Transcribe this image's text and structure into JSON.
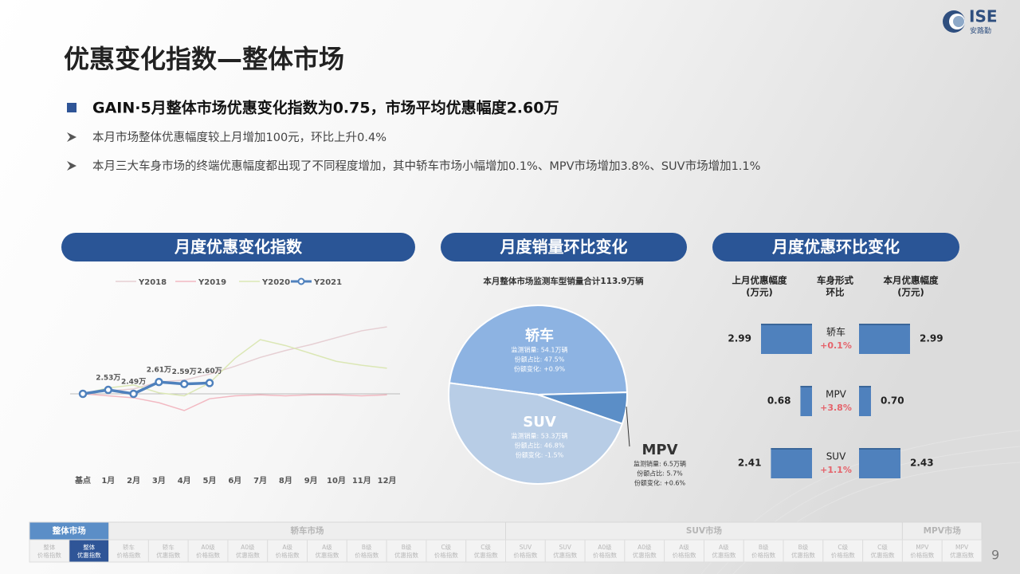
{
  "header": {
    "title": "优惠变化指数—整体市场",
    "headline": "GAIN·5月整体市场优惠变化指数为0.75，市场平均优惠幅度2.60万",
    "bullets": [
      "本月市场整体优惠幅度较上月增加100元，环比上升0.4%",
      "本月三大车身市场的终端优惠幅度都出现了不同程度增加，其中轿车市场小幅增加0.1%、MPV市场增加3.8%、SUV市场增加1.1%"
    ]
  },
  "logo": {
    "text": "ISE",
    "subtext": "安路勤"
  },
  "panels": [
    "月度优惠变化指数",
    "月度销量环比变化",
    "月度优惠环比变化"
  ],
  "chart_data": [
    {
      "type": "line",
      "categories": [
        "基点",
        "1月",
        "2月",
        "3月",
        "4月",
        "5月",
        "6月",
        "7月",
        "8月",
        "9月",
        "10月",
        "11月",
        "12月"
      ],
      "series": [
        {
          "name": "Y2018",
          "color": "#e6cfd3",
          "values": [
            2.49,
            2.52,
            2.54,
            2.61,
            2.63,
            2.69,
            2.77,
            2.86,
            2.93,
            2.99,
            3.06,
            3.13,
            3.17
          ]
        },
        {
          "name": "Y2019",
          "color": "#f2b9c2",
          "values": [
            2.49,
            2.47,
            2.45,
            2.4,
            2.32,
            2.44,
            2.47,
            2.48,
            2.47,
            2.48,
            2.48,
            2.47,
            2.48
          ]
        },
        {
          "name": "Y2020",
          "color": "#dbe7b5",
          "values": [
            2.49,
            2.55,
            2.58,
            2.5,
            2.47,
            2.6,
            2.85,
            3.04,
            2.98,
            2.9,
            2.82,
            2.78,
            2.75
          ]
        },
        {
          "name": "Y2021",
          "color": "#4f81bd",
          "values": [
            2.49,
            2.53,
            2.49,
            2.61,
            2.59,
            2.6,
            null,
            null,
            null,
            null,
            null,
            null,
            null
          ],
          "value_labels": [
            null,
            "2.53万",
            "2.49万",
            "2.61万",
            "2.59万",
            "2.60万",
            null,
            null,
            null,
            null,
            null,
            null,
            null
          ]
        }
      ]
    },
    {
      "type": "pie",
      "title": "本月整体市场监测车型销量合计113.9万辆",
      "categories": [
        "轿车",
        "SUV",
        "MPV"
      ],
      "values": [
        47.5,
        46.8,
        5.7
      ],
      "colors": [
        "#8db3e2",
        "#b8cde6",
        "#5b8ec7"
      ],
      "value_labels": [
        "份额占比: 47.5%",
        "份额占比: 46.8%",
        "份额占比: 5.7%"
      ],
      "sales_labels": [
        "监测销量: 54.1万辆",
        "监测销量: 53.3万辆",
        "监测销量: 6.5万辆"
      ],
      "change_labels": [
        "份额变化: +0.9%",
        "份额变化: -1.5%",
        "份额变化: +0.6%"
      ]
    },
    {
      "type": "butterfly",
      "column_headers": [
        [
          "上月优惠幅度",
          "(万元)"
        ],
        [
          "车身形式",
          "环比"
        ],
        [
          "本月优惠幅度",
          "(万元)"
        ]
      ],
      "categories": [
        "轿车",
        "MPV",
        "SUV"
      ],
      "change_labels": [
        "+0.1%",
        "+3.8%",
        "+1.1%"
      ],
      "color": "#4f81bd",
      "series": [
        {
          "values": [
            2.99,
            0.68,
            2.41
          ]
        },
        {
          "values": [
            2.99,
            0.7,
            2.43
          ],
          "value_labels": [
            "2.99",
            "0.70",
            "2.43"
          ]
        }
      ]
    }
  ],
  "nav": {
    "groups": [
      {
        "label": "整体市场",
        "items": [
          [
            "整体",
            "价格指数"
          ],
          [
            "整体",
            "优惠指数"
          ]
        ]
      },
      {
        "label": "轿车市场",
        "items": [
          [
            "轿车",
            "价格指数"
          ],
          [
            "轿车",
            "优惠指数"
          ],
          [
            "A0级",
            "价格指数"
          ],
          [
            "A0级",
            "优惠指数"
          ],
          [
            "A级",
            "价格指数"
          ],
          [
            "A级",
            "优惠指数"
          ],
          [
            "B级",
            "价格指数"
          ],
          [
            "B级",
            "优惠指数"
          ],
          [
            "C级",
            "价格指数"
          ],
          [
            "C级",
            "优惠指数"
          ]
        ]
      },
      {
        "label": "SUV市场",
        "items": [
          [
            "SUV",
            "价格指数"
          ],
          [
            "SUV",
            "优惠指数"
          ],
          [
            "A0级",
            "价格指数"
          ],
          [
            "A0级",
            "优惠指数"
          ],
          [
            "A级",
            "价格指数"
          ],
          [
            "A级",
            "优惠指数"
          ],
          [
            "B级",
            "价格指数"
          ],
          [
            "B级",
            "优惠指数"
          ],
          [
            "C级",
            "价格指数"
          ],
          [
            "C级",
            "优惠指数"
          ]
        ]
      },
      {
        "label": "MPV市场",
        "items": [
          [
            "MPV",
            "价格指数"
          ],
          [
            "MPV",
            "优惠指数"
          ]
        ]
      }
    ]
  },
  "page_number": "9"
}
